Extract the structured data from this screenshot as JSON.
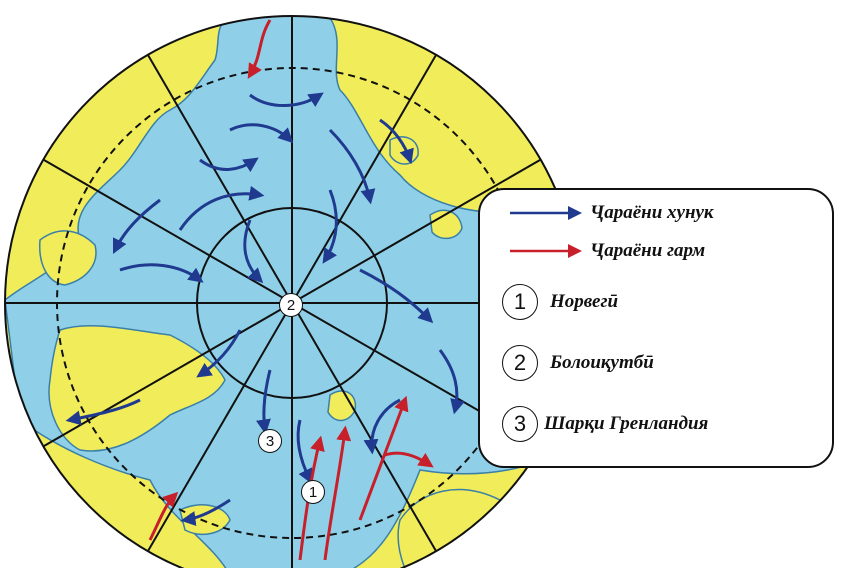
{
  "legend": {
    "cold_current": "Ҷараёни хунук",
    "warm_current": "Ҷараёни гарм",
    "items": [
      {
        "number": "1",
        "label": "Норвегӣ"
      },
      {
        "number": "2",
        "label": "Болоиқутбӣ"
      },
      {
        "number": "3",
        "label": "Шарқи Гренландия"
      }
    ]
  },
  "map_markers": [
    "2",
    "3",
    "1"
  ],
  "colors": {
    "ocean": "#8fd0e8",
    "land": "#f0ec5a",
    "cold_arrow": "#1f3a8f",
    "warm_arrow": "#c8202a",
    "outline": "#1a1a1a"
  }
}
